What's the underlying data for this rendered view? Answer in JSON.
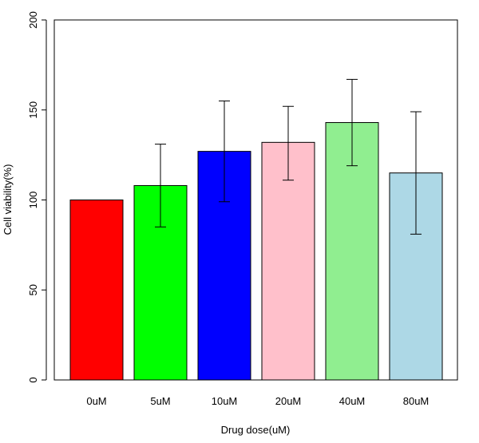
{
  "chart_data": {
    "type": "bar",
    "title": "",
    "xlabel": "Drug dose(uM)",
    "ylabel": "Cell viability(%)",
    "ylim": [
      0,
      200
    ],
    "yticks": [
      0,
      50,
      100,
      150,
      200
    ],
    "grid": false,
    "categories": [
      "0uM",
      "5uM",
      "10uM",
      "20uM",
      "40uM",
      "80uM"
    ],
    "values": [
      100,
      108,
      127,
      132,
      143,
      115
    ],
    "error_low": [
      100,
      85,
      99,
      111,
      119,
      81
    ],
    "error_high": [
      100,
      131,
      155,
      152,
      167,
      149
    ],
    "colors": [
      "#ff0000",
      "#00ff00",
      "#0000ff",
      "#ffc0cb",
      "#90ee90",
      "#add8e6"
    ]
  }
}
